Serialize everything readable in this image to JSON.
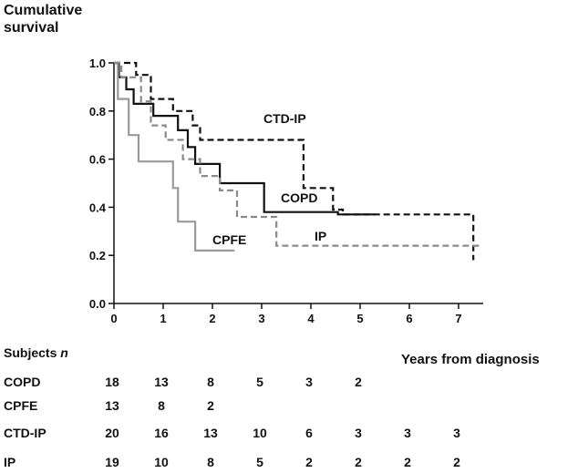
{
  "chart_data": {
    "type": "line",
    "ylabel": "Cumulative survival",
    "xlabel": "Years from diagnosis",
    "xlim": [
      0,
      7.5
    ],
    "ylim": [
      0,
      1.0
    ],
    "xticks": [
      "0",
      "1",
      "2",
      "3",
      "4",
      "5",
      "6",
      "7"
    ],
    "yticks": [
      "0.0",
      "0.2",
      "0.4",
      "0.6",
      "0.8",
      "1.0"
    ],
    "series": [
      {
        "name": "COPD",
        "style": "solid",
        "color": "#111111",
        "label": "COPD",
        "x": [
          0,
          0.1,
          0.1,
          0.25,
          0.25,
          0.4,
          0.4,
          0.8,
          0.8,
          1.3,
          1.3,
          1.5,
          1.5,
          1.65,
          1.65,
          2.15,
          2.15,
          3.05,
          3.05,
          4.55,
          4.55,
          5.3
        ],
        "y": [
          1.0,
          1.0,
          0.94,
          0.94,
          0.89,
          0.89,
          0.83,
          0.83,
          0.78,
          0.78,
          0.72,
          0.72,
          0.65,
          0.65,
          0.58,
          0.58,
          0.5,
          0.5,
          0.38,
          0.38,
          0.37,
          0.37
        ]
      },
      {
        "name": "CPFE",
        "style": "solid",
        "color": "#9a9a9a",
        "label": "CPFE",
        "x": [
          0,
          0.08,
          0.08,
          0.3,
          0.3,
          0.5,
          0.5,
          1.2,
          1.2,
          1.3,
          1.3,
          1.65,
          1.65,
          2.45
        ],
        "y": [
          1.0,
          1.0,
          0.85,
          0.85,
          0.7,
          0.7,
          0.59,
          0.59,
          0.48,
          0.48,
          0.34,
          0.34,
          0.22,
          0.22
        ]
      },
      {
        "name": "CTD-IP",
        "style": "dashed",
        "color": "#111111",
        "label": "CTD-IP",
        "x": [
          0,
          0.45,
          0.45,
          0.75,
          0.75,
          1.2,
          1.2,
          1.6,
          1.6,
          1.75,
          1.75,
          3.85,
          3.85,
          4.45,
          4.45,
          4.65,
          4.65,
          7.3,
          7.3
        ],
        "y": [
          1.0,
          1.0,
          0.95,
          0.95,
          0.85,
          0.85,
          0.8,
          0.8,
          0.74,
          0.74,
          0.68,
          0.68,
          0.48,
          0.48,
          0.39,
          0.39,
          0.37,
          0.37,
          0.18
        ]
      },
      {
        "name": "IP",
        "style": "dashed",
        "color": "#8a8a8a",
        "label": "IP",
        "x": [
          0,
          0.15,
          0.15,
          0.55,
          0.55,
          0.75,
          0.75,
          1.05,
          1.05,
          1.4,
          1.4,
          1.75,
          1.75,
          2.15,
          2.15,
          2.5,
          2.5,
          3.3,
          3.3,
          7.45
        ],
        "y": [
          1.0,
          1.0,
          0.94,
          0.94,
          0.84,
          0.84,
          0.74,
          0.74,
          0.68,
          0.68,
          0.6,
          0.6,
          0.53,
          0.53,
          0.47,
          0.47,
          0.36,
          0.36,
          0.24,
          0.24
        ]
      }
    ]
  },
  "risk_table": {
    "title_prefix": "Subjects ",
    "title_italic": "n",
    "rows": [
      {
        "name": "COPD",
        "values": [
          "18",
          "13",
          "8",
          "5",
          "3",
          "2"
        ]
      },
      {
        "name": "CPFE",
        "values": [
          "13",
          "8",
          "2"
        ]
      },
      {
        "name": "CTD-IP",
        "values": [
          "20",
          "16",
          "13",
          "10",
          "6",
          "3",
          "3",
          "3"
        ]
      },
      {
        "name": "IP",
        "values": [
          "19",
          "10",
          "8",
          "5",
          "2",
          "2",
          "2",
          "2"
        ]
      }
    ]
  }
}
